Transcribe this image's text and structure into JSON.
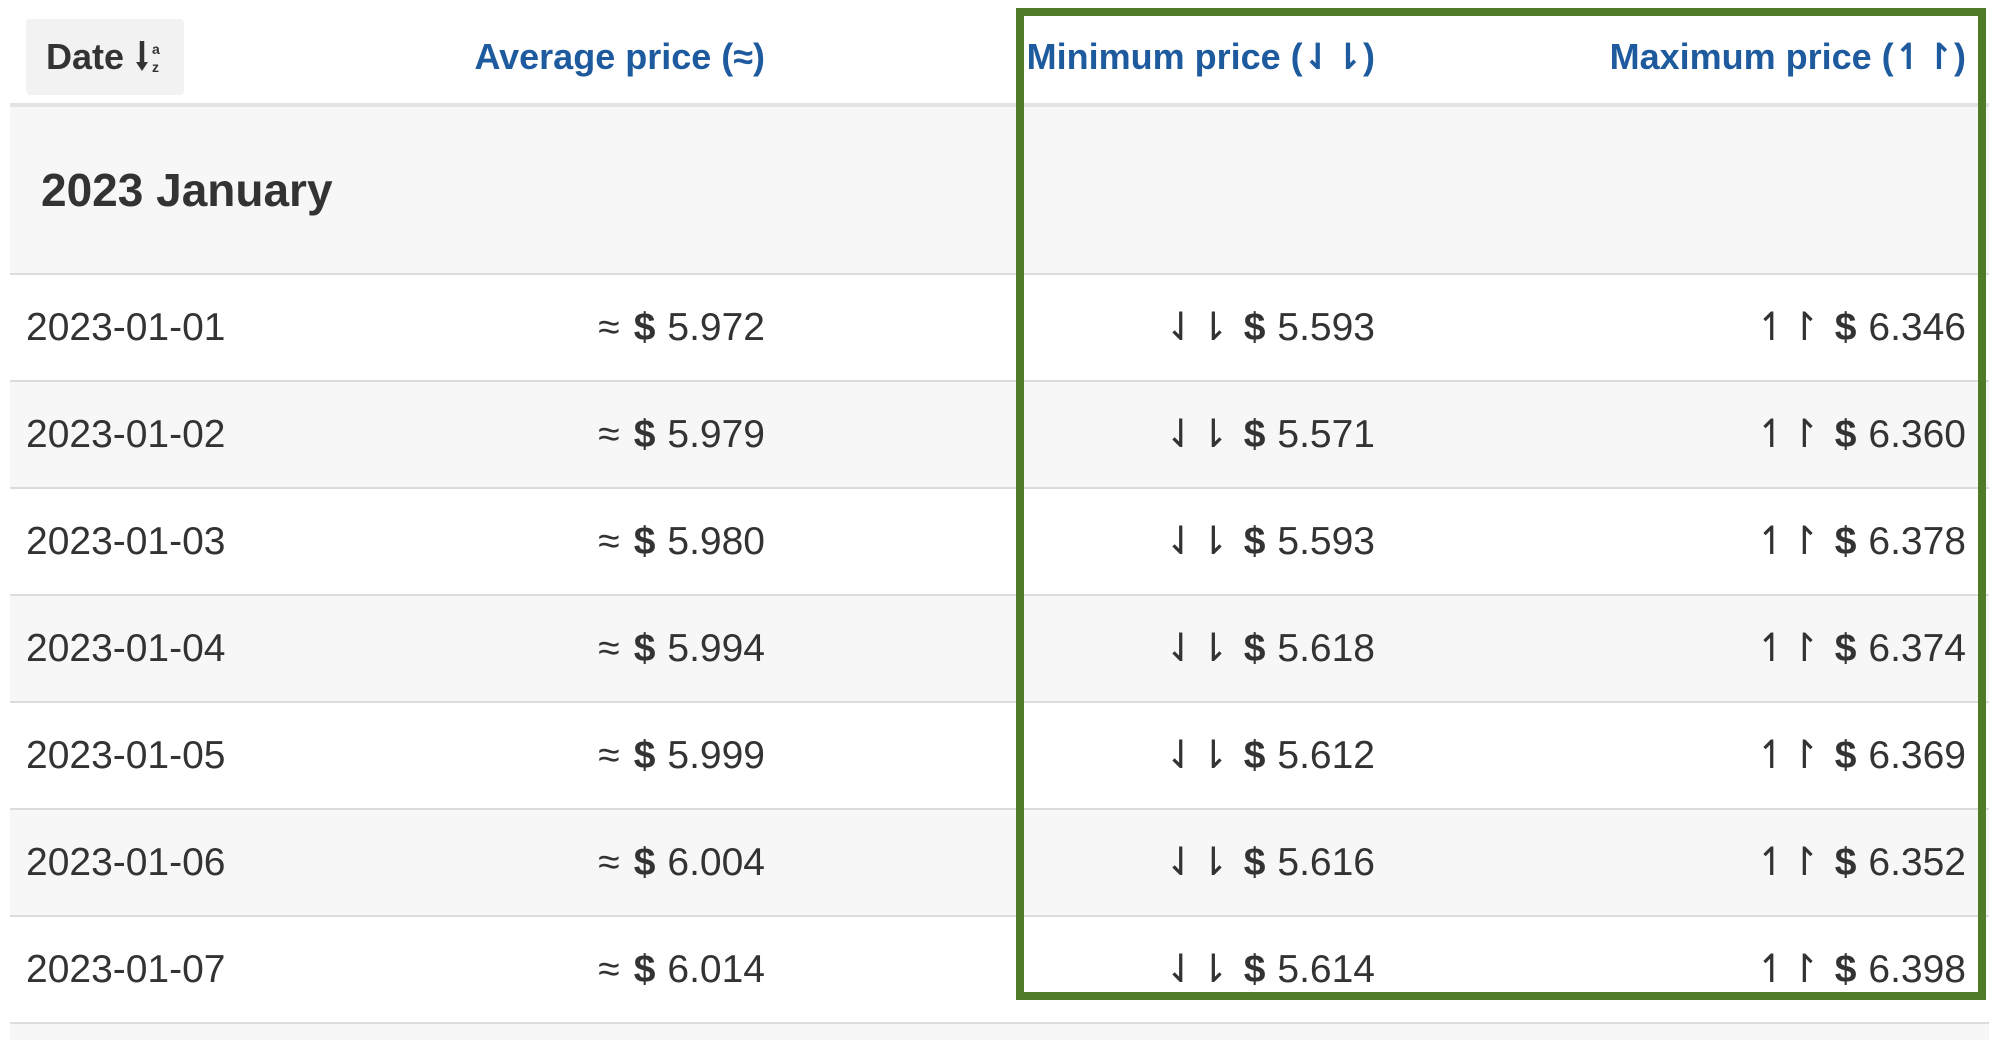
{
  "header": {
    "date": "Date",
    "sort_icon": "sort-icon",
    "average": "Average price (≈)",
    "minimum": "Minimum price (⇃⇂)",
    "maximum": "Maximum price (↿↾)"
  },
  "month_label": "2023 January",
  "symbols": {
    "approx": "≈",
    "down": "⇃⇂",
    "up": "↿↾",
    "dollar": "$"
  },
  "rows": [
    {
      "date": "2023-01-01",
      "avg": "5.972",
      "min": "5.593",
      "max": "6.346"
    },
    {
      "date": "2023-01-02",
      "avg": "5.979",
      "min": "5.571",
      "max": "6.360"
    },
    {
      "date": "2023-01-03",
      "avg": "5.980",
      "min": "5.593",
      "max": "6.378"
    },
    {
      "date": "2023-01-04",
      "avg": "5.994",
      "min": "5.618",
      "max": "6.374"
    },
    {
      "date": "2023-01-05",
      "avg": "5.999",
      "min": "5.612",
      "max": "6.369"
    },
    {
      "date": "2023-01-06",
      "avg": "6.004",
      "min": "5.616",
      "max": "6.352"
    },
    {
      "date": "2023-01-07",
      "avg": "6.014",
      "min": "5.614",
      "max": "6.398"
    }
  ],
  "colors": {
    "link": "#1e5a9e",
    "highlight": "#4f7a28",
    "stripe": "#f7f7f7"
  }
}
